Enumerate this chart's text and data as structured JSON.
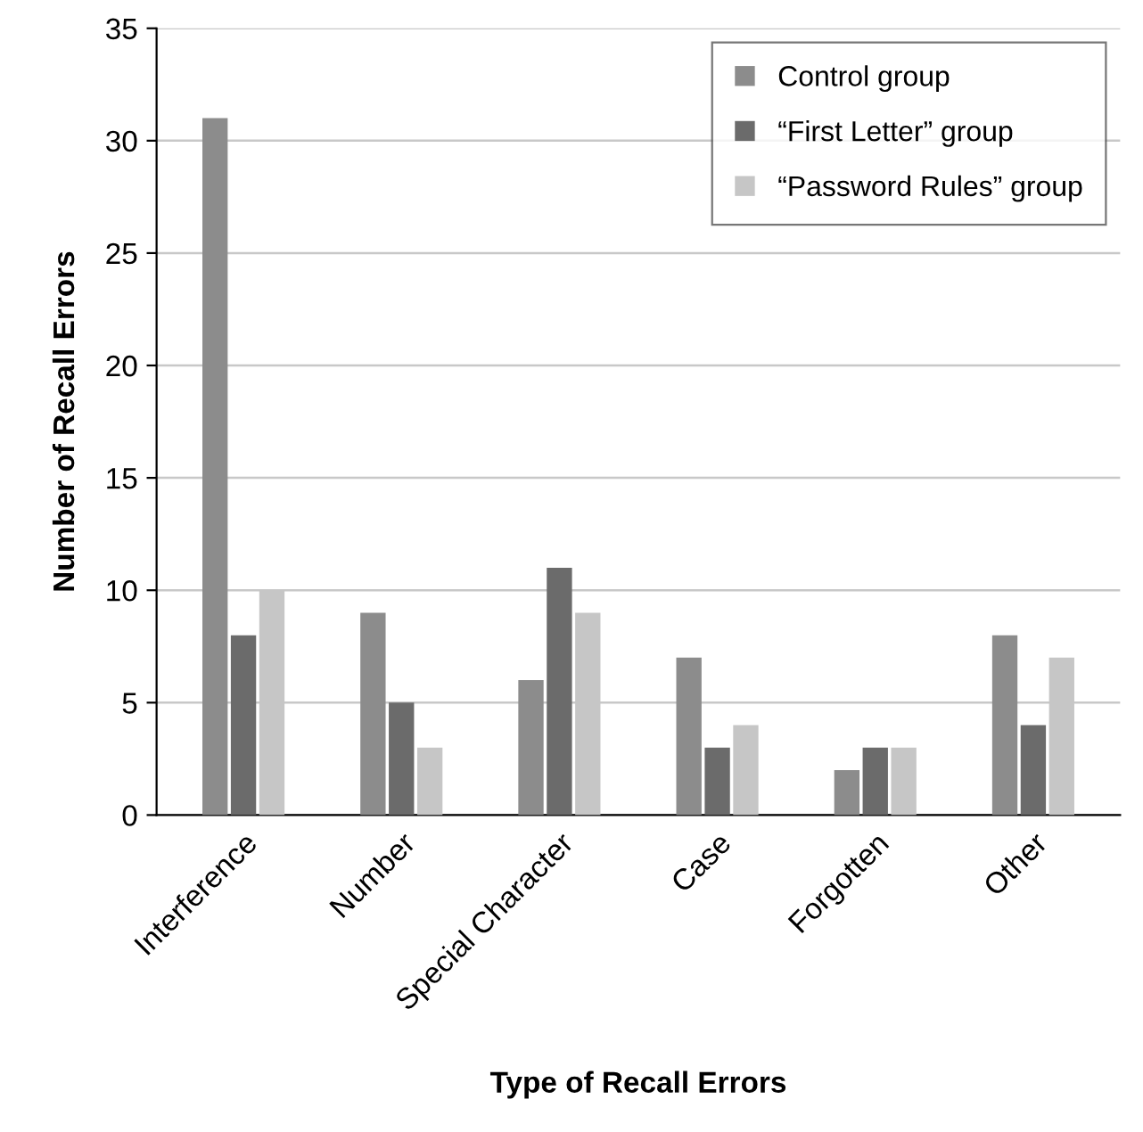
{
  "chart_data": {
    "type": "bar",
    "xlabel": "Type of Recall Errors",
    "ylabel": "Number of Recall Errors",
    "categories": [
      "Interference",
      "Number",
      "Special Character",
      "Case",
      "Forgotten",
      "Other"
    ],
    "series": [
      {
        "name": "Control group",
        "color": "#8c8c8c",
        "values": [
          31,
          9,
          6,
          7,
          2,
          8
        ]
      },
      {
        "name": "“First Letter” group",
        "color": "#6b6b6b",
        "values": [
          8,
          5,
          11,
          3,
          3,
          4
        ]
      },
      {
        "name": "“Password Rules” group",
        "color": "#c6c6c6",
        "values": [
          10,
          3,
          9,
          4,
          3,
          7
        ]
      }
    ],
    "ylim": [
      0,
      35
    ],
    "yticks": [
      0,
      5,
      10,
      15,
      20,
      25,
      30,
      35
    ],
    "grid": "y",
    "legend": "top right"
  }
}
